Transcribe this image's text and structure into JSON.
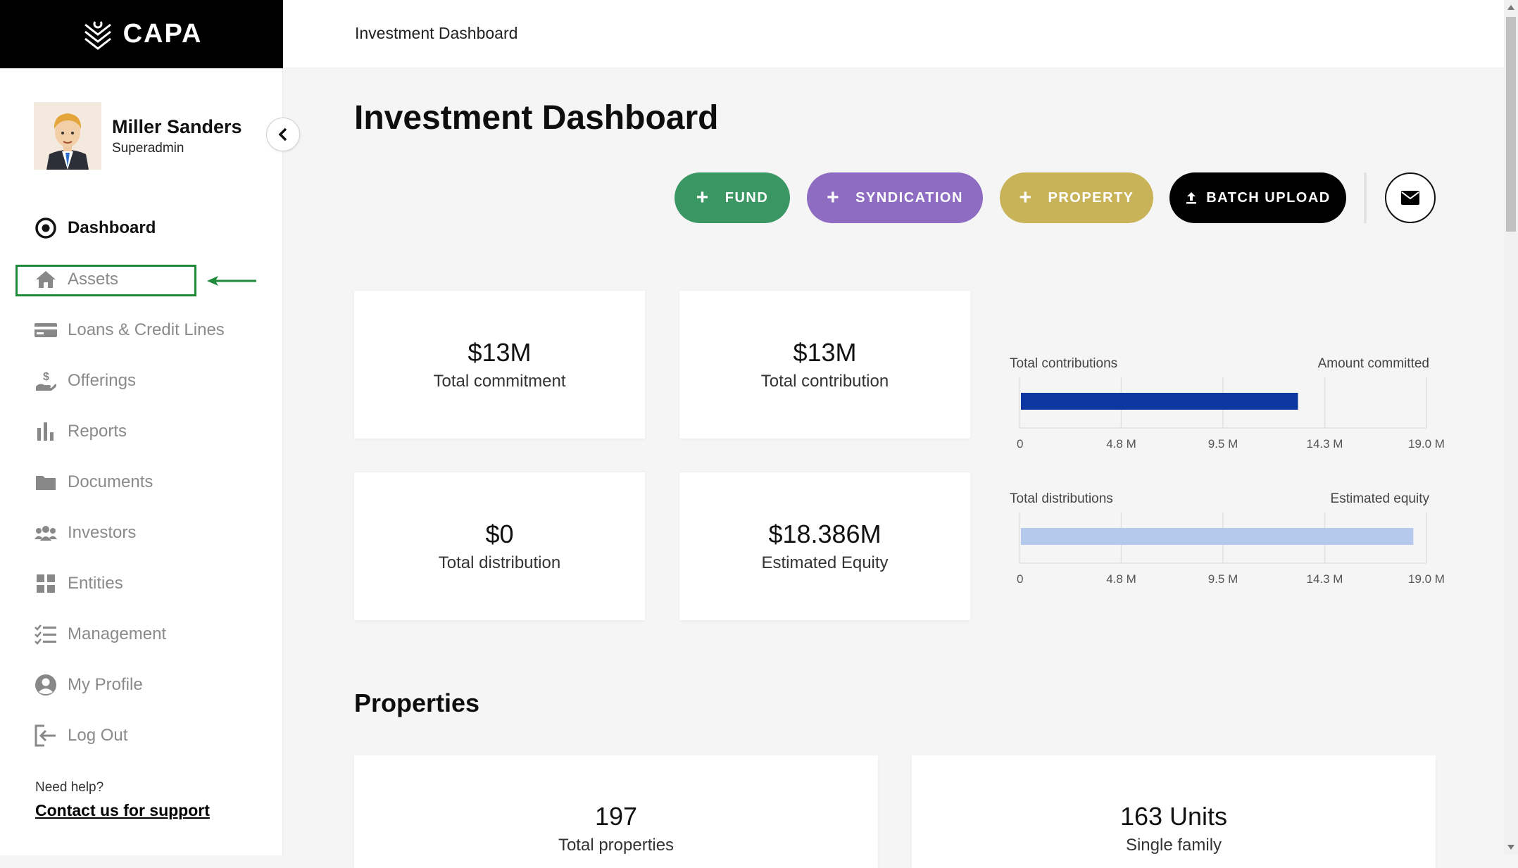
{
  "brand": {
    "name": "CAPA"
  },
  "user": {
    "name": "Miller Sanders",
    "role": "Superadmin"
  },
  "sidebar": {
    "items": [
      {
        "label": "Dashboard",
        "icon": "target-icon",
        "active": true
      },
      {
        "label": "Assets",
        "icon": "home-icon",
        "highlighted": true
      },
      {
        "label": "Loans & Credit Lines",
        "icon": "credit-card-icon"
      },
      {
        "label": "Offerings",
        "icon": "hand-dollar-icon"
      },
      {
        "label": "Reports",
        "icon": "bar-chart-icon"
      },
      {
        "label": "Documents",
        "icon": "folder-icon"
      },
      {
        "label": "Investors",
        "icon": "users-icon"
      },
      {
        "label": "Entities",
        "icon": "grid-icon"
      },
      {
        "label": "Management",
        "icon": "checklist-icon"
      },
      {
        "label": "My Profile",
        "icon": "user-circle-icon"
      },
      {
        "label": "Log Out",
        "icon": "logout-icon"
      }
    ],
    "help": {
      "title": "Need help?",
      "link": "Contact us for support"
    }
  },
  "header": {
    "title": "Investment Dashboard"
  },
  "main": {
    "title": "Investment Dashboard",
    "actions": {
      "fund": "FUND",
      "syndication": "SYNDICATION",
      "property": "PROPERTY",
      "batch_upload": "BATCH UPLOAD"
    },
    "stats": [
      {
        "value": "$13M",
        "label": "Total commitment"
      },
      {
        "value": "$13M",
        "label": "Total contribution"
      },
      {
        "value": "$0",
        "label": "Total distribution"
      },
      {
        "value": "$18.386M",
        "label": "Estimated Equity"
      }
    ],
    "properties": {
      "title": "Properties",
      "cards": [
        {
          "value": "197",
          "label": "Total properties"
        },
        {
          "value": "163 Units",
          "label": "Single family"
        }
      ]
    }
  },
  "colors": {
    "fund": "#3a9764",
    "syndication": "#8d6cc2",
    "property": "#c9b358",
    "batch": "#000000",
    "contribution_bar": "#0c37a0",
    "distribution_bar": "#b4c9ec",
    "annotation_green": "#1e8a3a"
  },
  "chart_data": [
    {
      "type": "bar",
      "orientation": "horizontal",
      "label_left": "Total contributions",
      "label_right": "Amount committed",
      "values": [
        13
      ],
      "xlim": [
        0,
        19.0
      ],
      "ticks": [
        "0",
        "4.8 M",
        "9.5 M",
        "14.3 M",
        "19.0 M"
      ],
      "color": "#0c37a0"
    },
    {
      "type": "bar",
      "orientation": "horizontal",
      "label_left": "Total distributions",
      "label_right": "Estimated equity",
      "values": [
        18.386
      ],
      "xlim": [
        0,
        19.0
      ],
      "ticks": [
        "0",
        "4.8 M",
        "9.5 M",
        "14.3 M",
        "19.0 M"
      ],
      "color": "#b4c9ec"
    }
  ]
}
